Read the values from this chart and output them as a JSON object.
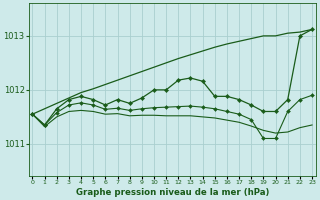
{
  "title": "Graphe pression niveau de la mer (hPa)",
  "bg_color": "#ceeaea",
  "grid_color": "#aacfcf",
  "line_color": "#1a5c1a",
  "x_labels": [
    "0",
    "1",
    "2",
    "3",
    "4",
    "5",
    "6",
    "7",
    "8",
    "9",
    "10",
    "11",
    "12",
    "13",
    "14",
    "15",
    "16",
    "17",
    "18",
    "19",
    "20",
    "21",
    "22",
    "23"
  ],
  "yticks": [
    1011,
    1012,
    1013
  ],
  "ylim": [
    1010.4,
    1013.6
  ],
  "xlim": [
    -0.3,
    23.3
  ],
  "line_diagonal": [
    1011.55,
    1011.65,
    1011.75,
    1011.85,
    1011.95,
    1012.02,
    1012.1,
    1012.18,
    1012.26,
    1012.34,
    1012.42,
    1012.5,
    1012.58,
    1012.65,
    1012.72,
    1012.79,
    1012.85,
    1012.9,
    1012.95,
    1013.0,
    1013.0,
    1013.05,
    1013.07,
    1013.12
  ],
  "line_zigzag": [
    1011.55,
    1011.35,
    1011.65,
    1011.82,
    1011.88,
    1011.82,
    1011.72,
    1011.82,
    1011.75,
    1011.85,
    1012.0,
    1012.0,
    1012.18,
    1012.22,
    1012.16,
    1011.88,
    1011.88,
    1011.82,
    1011.72,
    1011.6,
    1011.6,
    1011.82,
    1013.0,
    1013.12
  ],
  "line_lower": [
    1011.55,
    1011.35,
    1011.58,
    1011.72,
    1011.76,
    1011.72,
    1011.64,
    1011.66,
    1011.62,
    1011.65,
    1011.67,
    1011.68,
    1011.69,
    1011.7,
    1011.68,
    1011.65,
    1011.6,
    1011.55,
    1011.45,
    1011.1,
    1011.1,
    1011.6,
    1011.82,
    1011.9
  ],
  "line_bottom": [
    1011.55,
    1011.32,
    1011.5,
    1011.6,
    1011.62,
    1011.6,
    1011.55,
    1011.56,
    1011.52,
    1011.53,
    1011.53,
    1011.52,
    1011.52,
    1011.52,
    1011.5,
    1011.48,
    1011.44,
    1011.4,
    1011.33,
    1011.25,
    1011.2,
    1011.22,
    1011.3,
    1011.35
  ]
}
